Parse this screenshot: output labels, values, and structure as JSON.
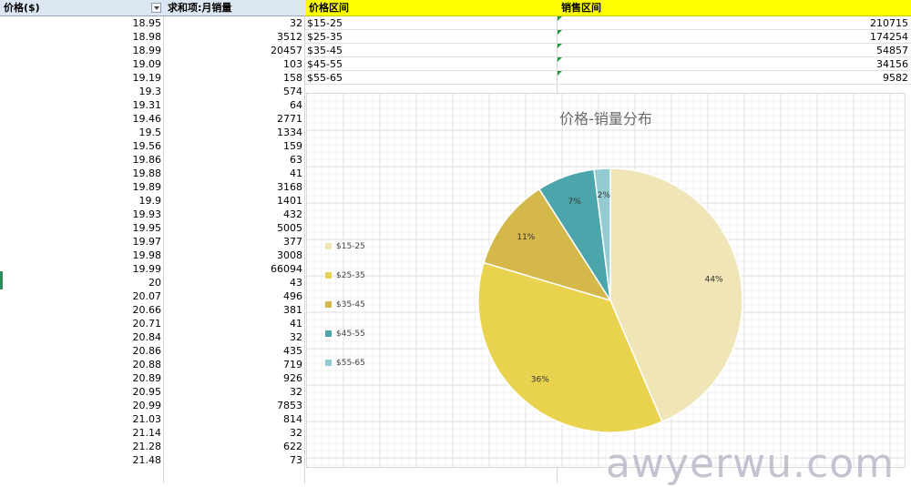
{
  "pivot": {
    "col_price_header": "价格($)",
    "col_sum_header": "求和项:月销量",
    "rows": [
      [
        "18.95",
        "32"
      ],
      [
        "18.98",
        "3512"
      ],
      [
        "18.99",
        "20457"
      ],
      [
        "19.09",
        "103"
      ],
      [
        "19.19",
        "158"
      ],
      [
        "19.3",
        "574"
      ],
      [
        "19.31",
        "64"
      ],
      [
        "19.46",
        "2771"
      ],
      [
        "19.5",
        "1334"
      ],
      [
        "19.56",
        "159"
      ],
      [
        "19.86",
        "63"
      ],
      [
        "19.88",
        "41"
      ],
      [
        "19.89",
        "3168"
      ],
      [
        "19.9",
        "1401"
      ],
      [
        "19.93",
        "432"
      ],
      [
        "19.95",
        "5005"
      ],
      [
        "19.97",
        "377"
      ],
      [
        "19.98",
        "3008"
      ],
      [
        "19.99",
        "66094"
      ],
      [
        "20",
        "43"
      ],
      [
        "20.07",
        "496"
      ],
      [
        "20.66",
        "381"
      ],
      [
        "20.71",
        "41"
      ],
      [
        "20.84",
        "32"
      ],
      [
        "20.86",
        "435"
      ],
      [
        "20.88",
        "719"
      ],
      [
        "20.89",
        "926"
      ],
      [
        "20.95",
        "32"
      ],
      [
        "20.99",
        "7853"
      ],
      [
        "21.03",
        "814"
      ],
      [
        "21.14",
        "32"
      ],
      [
        "21.28",
        "622"
      ],
      [
        "21.48",
        "73"
      ]
    ]
  },
  "summary": {
    "col_range_header": "价格区间",
    "col_sales_header": "销售区间",
    "rows": [
      [
        "$15-25",
        "210715"
      ],
      [
        "$25-35",
        "174254"
      ],
      [
        "$35-45",
        "54857"
      ],
      [
        "$45-55",
        "34156"
      ],
      [
        "$55-65",
        "9582"
      ]
    ]
  },
  "chart_data": {
    "type": "pie",
    "title": "价格-销量分布",
    "categories": [
      "$15-25",
      "$25-35",
      "$35-45",
      "$45-55",
      "$55-65"
    ],
    "values": [
      210715,
      174254,
      54857,
      34156,
      9582
    ],
    "percent_labels": [
      "44%",
      "36%",
      "11%",
      "7%",
      "2%"
    ],
    "colors": [
      "#efe5b6",
      "#e8d24e",
      "#d4b94a",
      "#4ba5aa",
      "#92ccd0"
    ],
    "legend_position": "left",
    "grid": true
  },
  "watermark": "awyerwu.com"
}
